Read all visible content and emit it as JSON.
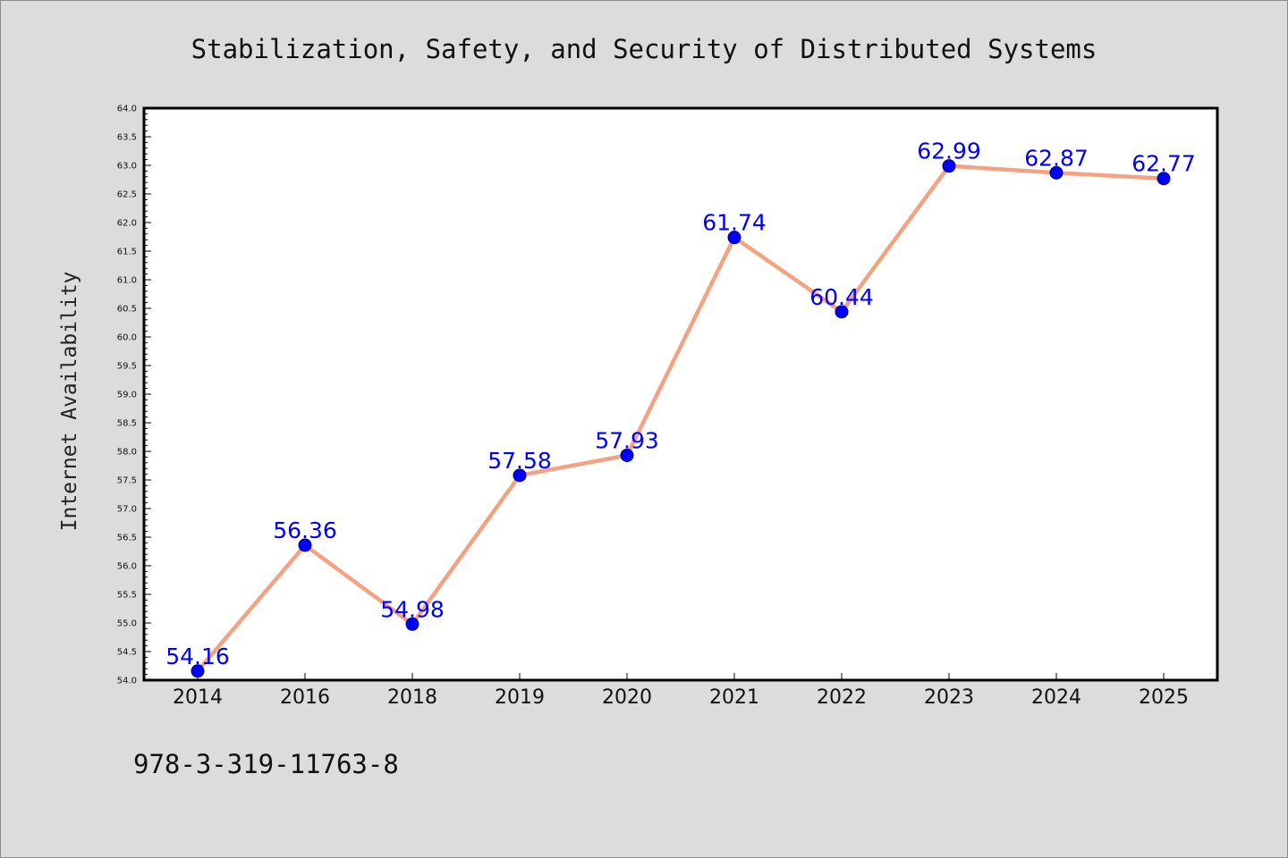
{
  "chart_data": {
    "type": "line",
    "title": "Stabilization, Safety, and Security of Distributed Systems",
    "xlabel": "",
    "ylabel": "Internet Availability",
    "categories": [
      "2014",
      "2016",
      "2018",
      "2019",
      "2020",
      "2021",
      "2022",
      "2023",
      "2024",
      "2025"
    ],
    "series": [
      {
        "values": [
          54.16,
          56.36,
          54.98,
          57.58,
          57.93,
          61.74,
          60.44,
          62.99,
          62.87,
          62.77
        ],
        "data_labels": [
          "54.16",
          "56.36",
          "54.98",
          "57.58",
          "57.93",
          "61.74",
          "60.44",
          "62.99",
          "62.87",
          "62.77"
        ]
      }
    ],
    "ylim": [
      54.0,
      64.0
    ],
    "yticks": [
      "54.0",
      "54.5",
      "55.0",
      "55.5",
      "56.0",
      "56.5",
      "57.0",
      "57.5",
      "58.0",
      "58.5",
      "59.0",
      "59.5",
      "60.0",
      "60.5",
      "61.0",
      "61.5",
      "62.0",
      "62.5",
      "63.0",
      "63.5",
      "64.0"
    ],
    "grid": false,
    "legend": "none",
    "colors": {
      "line": "#f4a282",
      "marker": "#0000ff",
      "data_label": "#0000ff",
      "background": "#dcdcdc",
      "plot_background": "#ffffff"
    }
  },
  "footnote": "978-3-319-11763-8"
}
